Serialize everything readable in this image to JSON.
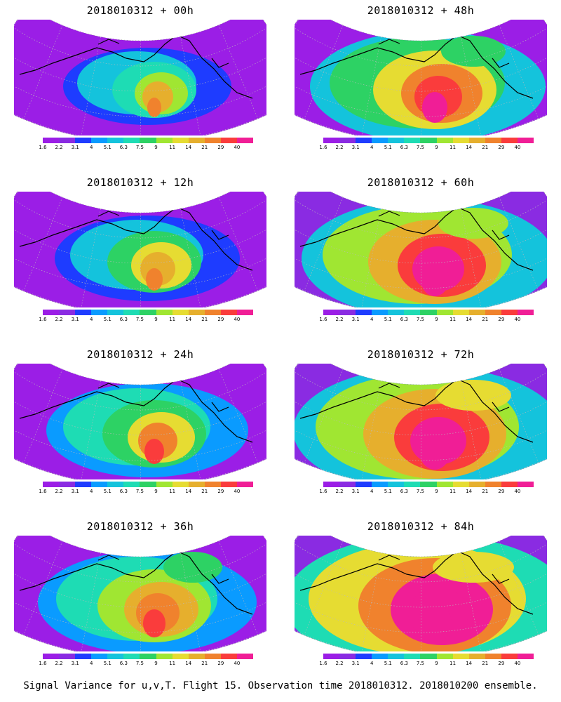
{
  "caption": "Signal Variance for u,v,T. Flight 15. Observation time 2018010312. 2018010200 ensemble.",
  "colorbar": {
    "labels": [
      "1.6",
      "2.2",
      "3.1",
      "4",
      "5.1",
      "6.3",
      "7.5",
      "9",
      "11",
      "14",
      "21",
      "29",
      "40"
    ],
    "colors": [
      "#9b1ee6",
      "#8a2be2",
      "#1e3cff",
      "#0a9bff",
      "#14c3dc",
      "#1edcb4",
      "#2dd264",
      "#a0e632",
      "#e6dc32",
      "#e6af2d",
      "#f0822d",
      "#fa3c3c",
      "#f01e96"
    ]
  },
  "panels": [
    {
      "title": "2018010312 + 00h",
      "intensity": 0
    },
    {
      "title": "2018010312 + 48h",
      "intensity": 4
    },
    {
      "title": "2018010312 + 12h",
      "intensity": 1
    },
    {
      "title": "2018010312 + 60h",
      "intensity": 5
    },
    {
      "title": "2018010312 + 24h",
      "intensity": 2
    },
    {
      "title": "2018010312 + 72h",
      "intensity": 6
    },
    {
      "title": "2018010312 + 36h",
      "intensity": 3
    },
    {
      "title": "2018010312 + 84h",
      "intensity": 7
    }
  ]
}
